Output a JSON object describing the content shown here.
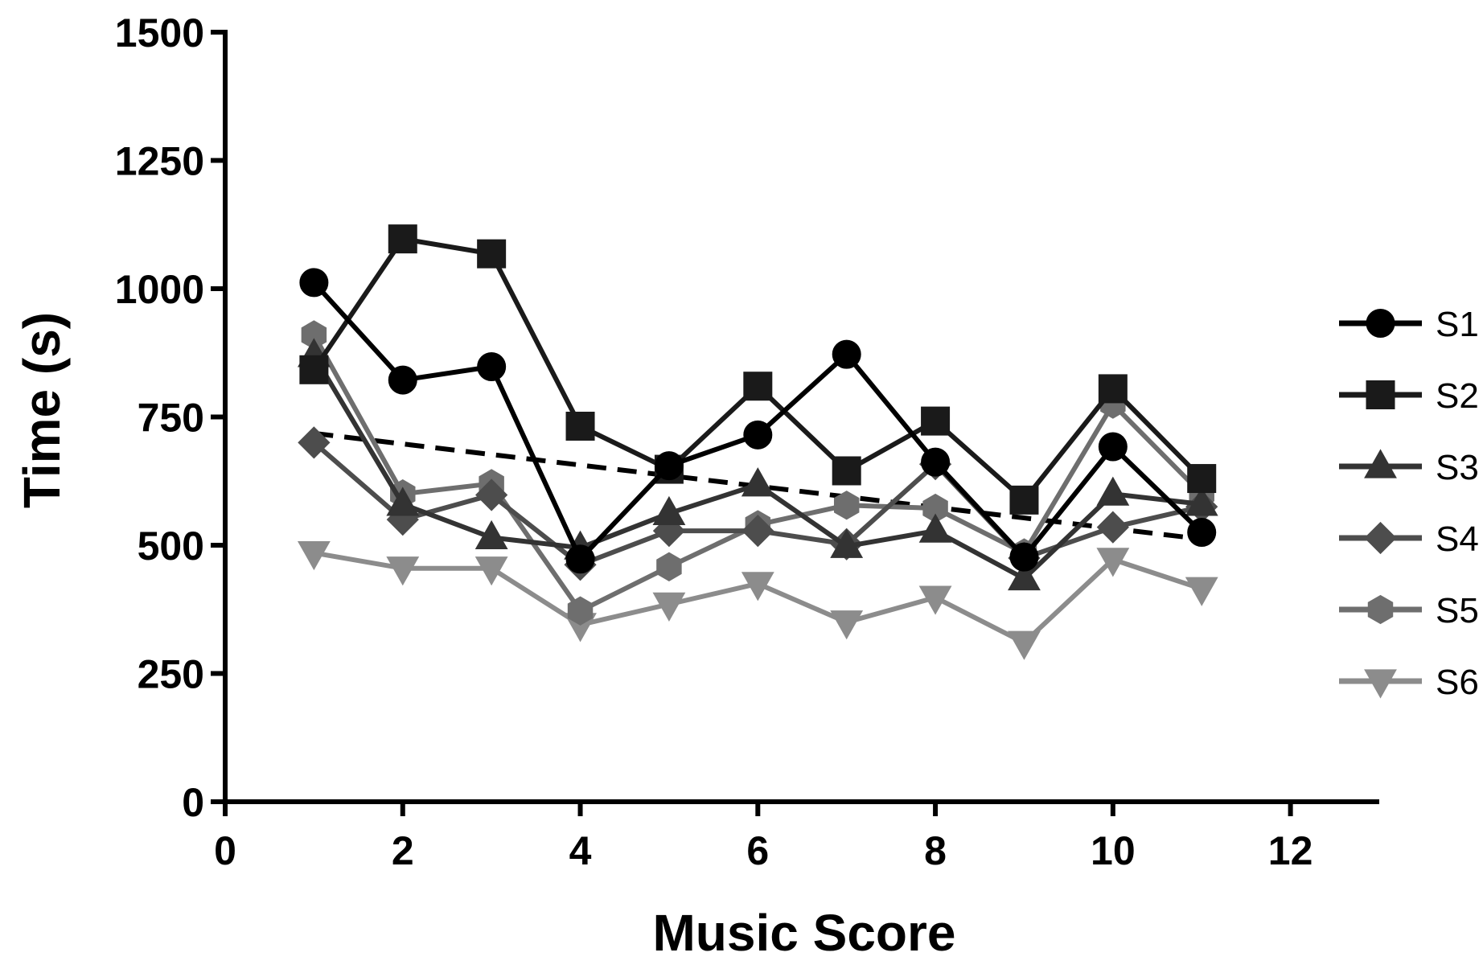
{
  "chart_data": {
    "type": "line",
    "xlabel": "Music Score",
    "ylabel": "Time (s)",
    "xlim": [
      0,
      13
    ],
    "ylim": [
      0,
      1500
    ],
    "xticks": [
      0,
      2,
      4,
      6,
      8,
      10,
      12
    ],
    "yticks": [
      0,
      250,
      500,
      750,
      1000,
      1250,
      1500
    ],
    "grid": false,
    "legend_position": "right",
    "x": [
      1,
      2,
      3,
      4,
      5,
      6,
      7,
      8,
      9,
      10,
      11
    ],
    "series": [
      {
        "name": "S1",
        "marker": "circle",
        "color": "#000000",
        "values": [
          1012,
          822,
          848,
          473,
          655,
          715,
          872,
          662,
          477,
          692,
          525
        ]
      },
      {
        "name": "S2",
        "marker": "square",
        "color": "#1a1a1a",
        "values": [
          842,
          1097,
          1068,
          732,
          648,
          810,
          645,
          742,
          588,
          805,
          630
        ]
      },
      {
        "name": "S3",
        "marker": "triangle-up",
        "color": "#333333",
        "values": [
          870,
          580,
          515,
          495,
          562,
          618,
          498,
          528,
          435,
          600,
          580
        ]
      },
      {
        "name": "S4",
        "marker": "diamond",
        "color": "#4d4d4d",
        "values": [
          700,
          550,
          598,
          462,
          528,
          528,
          502,
          658,
          475,
          535,
          575
        ]
      },
      {
        "name": "S5",
        "marker": "hexagon",
        "color": "#6e6e6e",
        "values": [
          910,
          600,
          620,
          372,
          458,
          540,
          578,
          572,
          485,
          775,
          600
        ]
      },
      {
        "name": "S6",
        "marker": "triangle-down",
        "color": "#8c8c8c",
        "values": [
          485,
          455,
          455,
          345,
          385,
          425,
          350,
          398,
          310,
          472,
          415
        ]
      }
    ],
    "trend": {
      "style": "dashed",
      "color": "#000000",
      "x": [
        1,
        11
      ],
      "values": [
        718,
        512
      ]
    }
  }
}
